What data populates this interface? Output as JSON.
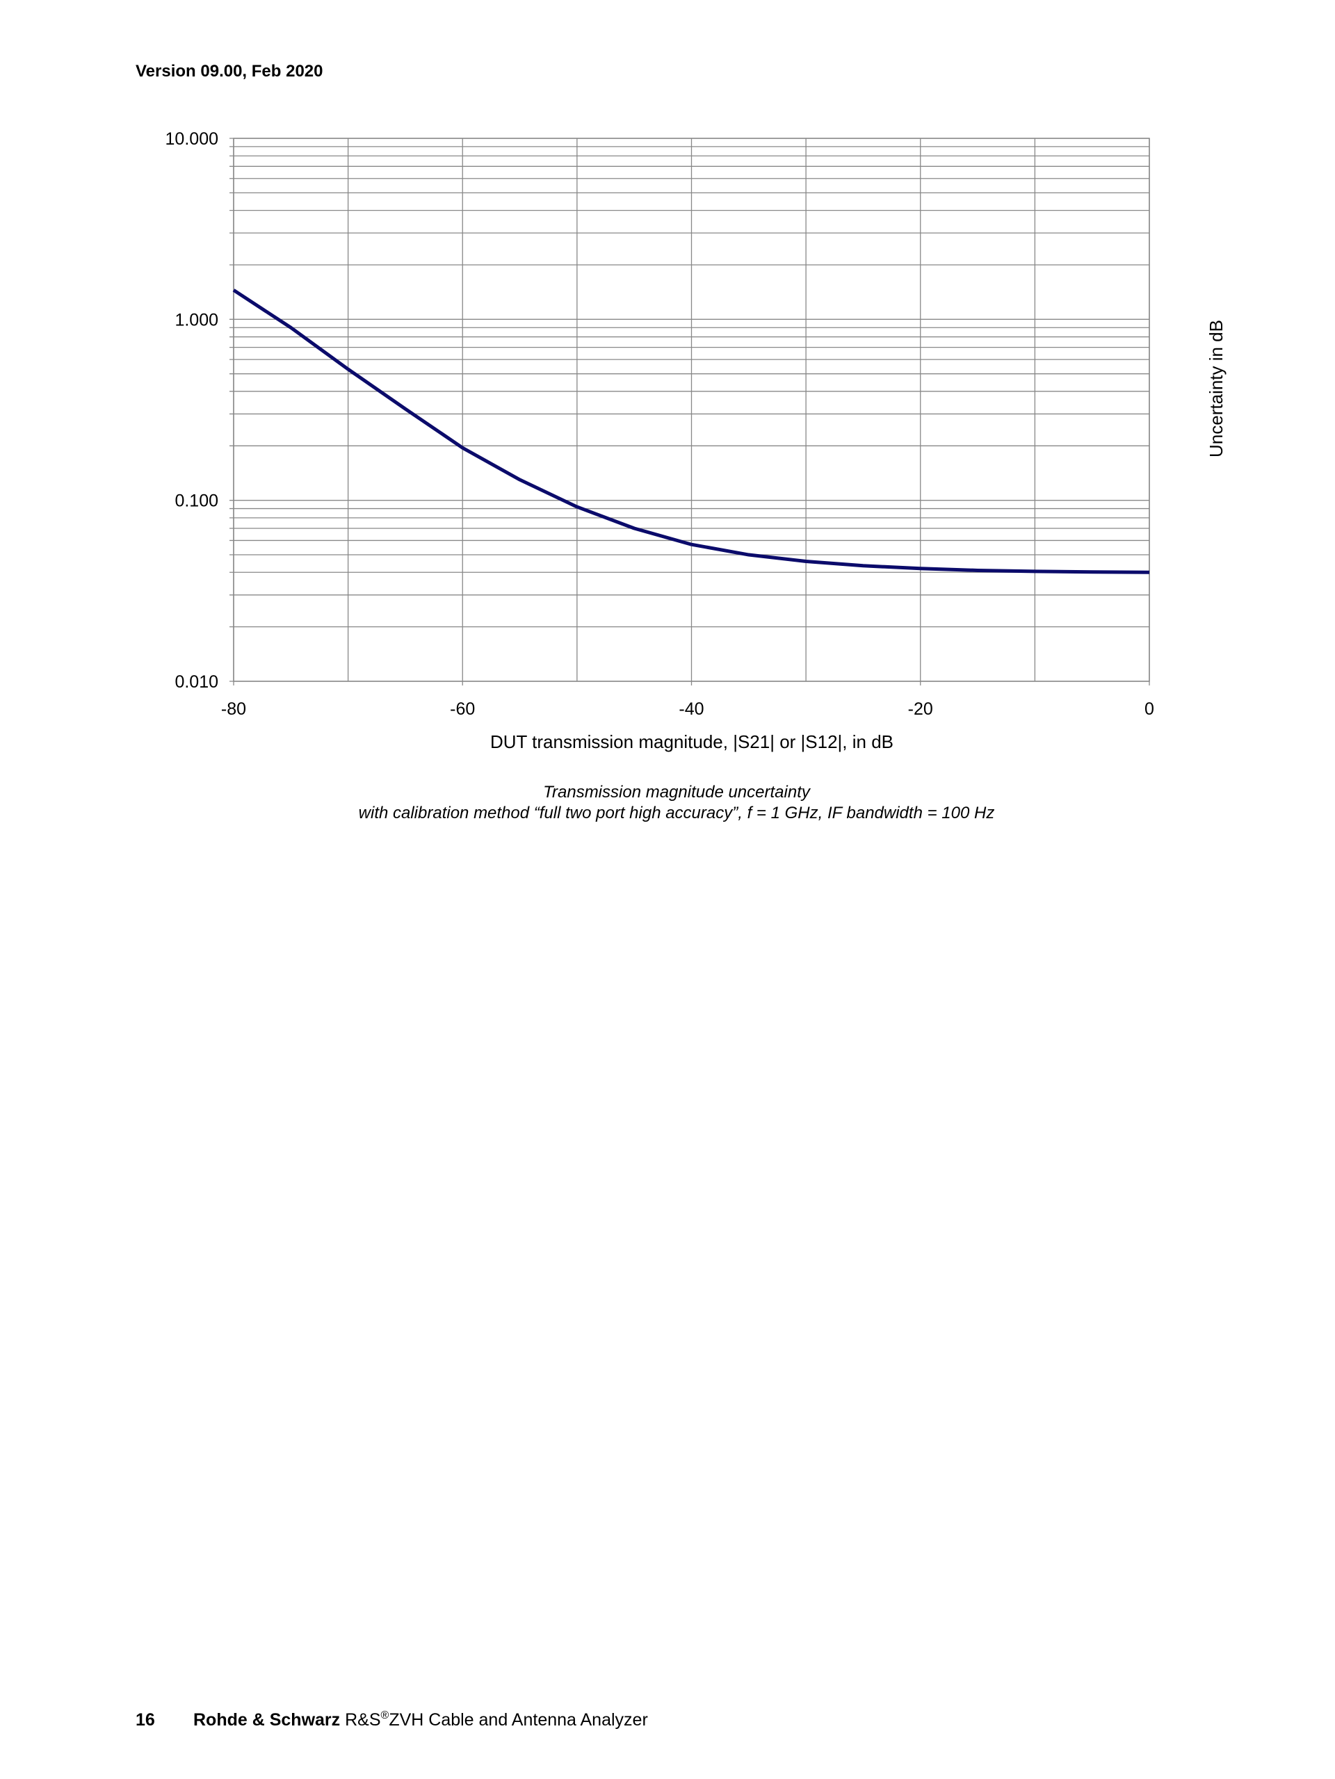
{
  "header": {
    "version": "Version 09.00, Feb 2020"
  },
  "chart_data": {
    "type": "line",
    "x_label": "DUT transmission magnitude, |S21| or |S12|, in dB",
    "y_label": "Uncertainty in dB",
    "x": [
      -80,
      -75,
      -70,
      -65,
      -60,
      -55,
      -50,
      -45,
      -40,
      -35,
      -30,
      -25,
      -20,
      -15,
      -10,
      -5,
      0
    ],
    "series": [
      {
        "name": "Transmission magnitude uncertainty",
        "color": "#0b0b6b",
        "values": [
          1.45,
          0.9,
          0.53,
          0.32,
          0.195,
          0.13,
          0.092,
          0.07,
          0.057,
          0.05,
          0.046,
          0.0435,
          0.042,
          0.041,
          0.0405,
          0.0402,
          0.04
        ]
      }
    ],
    "xlim": [
      -80,
      0
    ],
    "xticks": [
      -80,
      -60,
      -40,
      -20,
      0
    ],
    "ylim": [
      0.01,
      10
    ],
    "y_log": true,
    "yticks": [
      {
        "value": 10,
        "label": "10.000"
      },
      {
        "value": 1,
        "label": "1.000"
      },
      {
        "value": 0.1,
        "label": "0.100"
      },
      {
        "value": 0.01,
        "label": "0.010"
      }
    ],
    "grid": true
  },
  "caption": {
    "line1": "Transmission magnitude uncertainty",
    "line2": "with calibration method “full two port high accuracy”, f = 1 GHz, IF bandwidth = 100 Hz"
  },
  "footer": {
    "page": "16",
    "company": "Rohde & Schwarz",
    "prefix": "R&S",
    "mark": "®",
    "product": "ZVH Cable and Antenna Analyzer"
  }
}
